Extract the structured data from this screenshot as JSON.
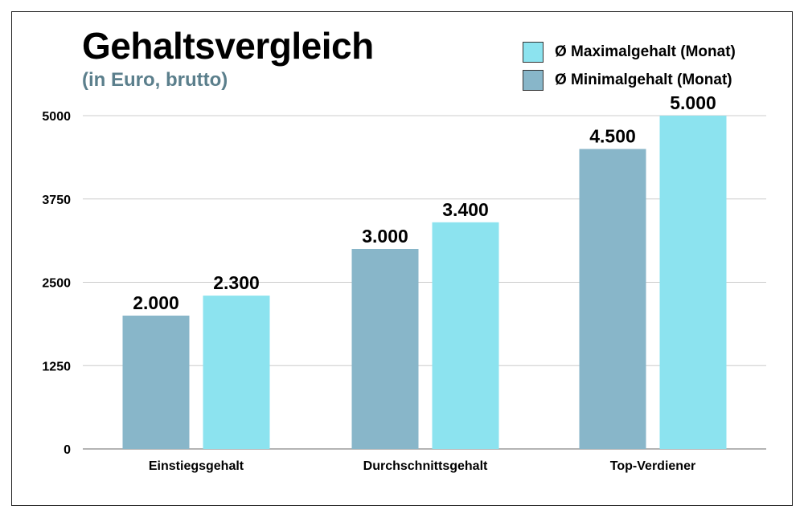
{
  "title": "Gehaltsvergleich",
  "subtitle": "(in Euro, brutto)",
  "colors": {
    "max": "#8ce3ef",
    "min": "#88b6c9",
    "subtitle": "#5b7f8c",
    "grid": "#cccccc"
  },
  "legend": [
    {
      "label": "Ø Maximalgehalt (Monat)",
      "color": "#8ce3ef"
    },
    {
      "label": "Ø Minimalgehalt (Monat)",
      "color": "#88b6c9"
    }
  ],
  "chart_data": {
    "type": "bar",
    "categories": [
      "Einstiegsgehalt",
      "Durchschnittsgehalt",
      "Top-Verdiener"
    ],
    "series": [
      {
        "name": "Ø Minimalgehalt (Monat)",
        "values": [
          2000,
          3000,
          4500
        ],
        "labels": [
          "2.000",
          "3.000",
          "4.500"
        ],
        "color": "#88b6c9"
      },
      {
        "name": "Ø Maximalgehalt (Monat)",
        "values": [
          2300,
          3400,
          5000
        ],
        "labels": [
          "2.300",
          "3.400",
          "5.000"
        ],
        "color": "#8ce3ef"
      }
    ],
    "yticks": [
      0,
      1250,
      2500,
      3750,
      5000
    ],
    "ytick_labels": [
      "0",
      "1250",
      "2500",
      "3750",
      "5000"
    ],
    "ylim": [
      0,
      5000
    ],
    "title": "Gehaltsvergleich",
    "subtitle": "(in Euro, brutto)",
    "xlabel": "",
    "ylabel": "",
    "grid": true,
    "legend_position": "top-right"
  }
}
